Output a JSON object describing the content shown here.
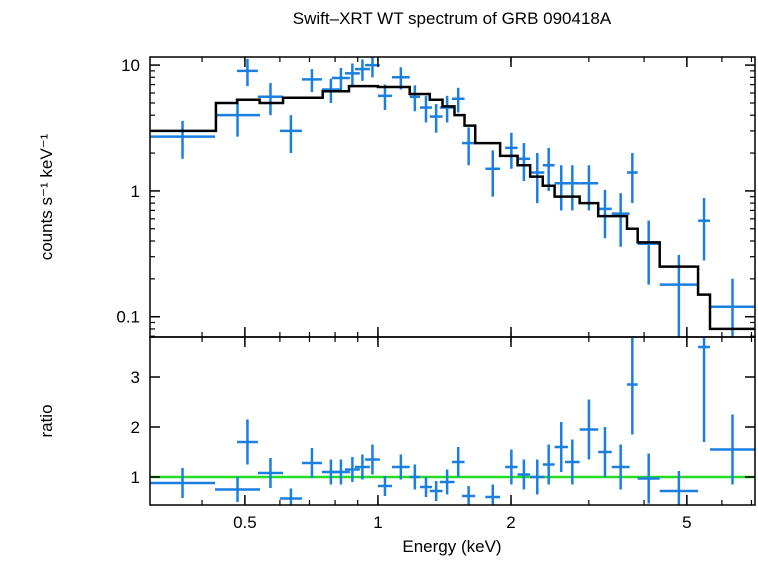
{
  "chart_data": [
    {
      "type": "errorbar",
      "title": "Swift–XRT WT spectrum of GRB 090418A",
      "ylabel": "counts s⁻¹ keV⁻¹",
      "log_x": true,
      "log_y": true,
      "xlim": [
        0.305,
        7.13
      ],
      "ylim": [
        0.069,
        11.6
      ],
      "yticks": [
        0.1,
        1,
        10
      ],
      "color": "#1a7fe0",
      "x_low": [
        0.305,
        0.428,
        0.48,
        0.535,
        0.6,
        0.673,
        0.747,
        0.787,
        0.842,
        0.887,
        0.935,
        1.0,
        1.076,
        1.18,
        1.245,
        1.31,
        1.38,
        1.47,
        1.55,
        1.75,
        1.94,
        2.07,
        2.21,
        2.36,
        2.51,
        2.65,
        2.86,
        3.15,
        3.38,
        3.66,
        3.87,
        4.34,
        5.3,
        5.64
      ],
      "x_high": [
        0.428,
        0.541,
        0.535,
        0.61,
        0.673,
        0.747,
        0.82,
        0.864,
        0.91,
        0.959,
        1.01,
        1.076,
        1.18,
        1.245,
        1.325,
        1.4,
        1.49,
        1.57,
        1.66,
        1.89,
        2.07,
        2.21,
        2.38,
        2.51,
        2.69,
        2.86,
        3.15,
        3.38,
        3.71,
        3.87,
        4.34,
        5.3,
        5.64,
        7.13
      ],
      "values": [
        2.7,
        4.0,
        9.0,
        5.6,
        3.0,
        7.7,
        6.4,
        7.9,
        8.6,
        9.3,
        10,
        5.7,
        8.0,
        5.6,
        4.6,
        3.9,
        4.6,
        5.4,
        2.4,
        1.5,
        2.2,
        1.8,
        1.4,
        1.6,
        1.15,
        1.15,
        1.15,
        0.72,
        0.66,
        1.4,
        0.38,
        0.18,
        0.58,
        0.12
      ],
      "errors": [
        0.9,
        1.3,
        2.2,
        1.6,
        1.0,
        1.6,
        1.4,
        1.6,
        1.7,
        1.8,
        2.0,
        1.3,
        1.6,
        1.3,
        1.1,
        1.0,
        1.1,
        1.2,
        0.8,
        0.6,
        0.7,
        0.6,
        0.6,
        0.6,
        0.45,
        0.45,
        0.45,
        0.3,
        0.3,
        0.6,
        0.2,
        0.13,
        0.3,
        0.08
      ],
      "model": {
        "color": "#000000",
        "bins": [
          0.305,
          0.43,
          0.48,
          0.54,
          0.61,
          0.75,
          0.86,
          1.0,
          1.18,
          1.31,
          1.4,
          1.49,
          1.57,
          1.66,
          1.89,
          2.07,
          2.21,
          2.36,
          2.51,
          2.86,
          3.15,
          3.66,
          3.87,
          4.34,
          5.3,
          5.64,
          7.13
        ],
        "values": [
          3.0,
          5.0,
          5.3,
          5.0,
          5.5,
          6.2,
          6.8,
          6.7,
          5.9,
          5.3,
          4.7,
          4.0,
          3.3,
          2.4,
          1.9,
          1.6,
          1.3,
          1.1,
          0.9,
          0.8,
          0.63,
          0.5,
          0.39,
          0.25,
          0.15,
          0.08
        ]
      }
    },
    {
      "type": "errorbar",
      "xlabel": "Energy (keV)",
      "ylabel": "ratio",
      "log_x": true,
      "log_y": false,
      "xlim": [
        0.305,
        7.13
      ],
      "ylim": [
        0.44,
        3.8
      ],
      "xticks": [
        0.5,
        1,
        2,
        5
      ],
      "yticks": [
        1,
        2,
        3
      ],
      "color": "#1a7fe0",
      "x_low": [
        0.305,
        0.428,
        0.48,
        0.535,
        0.6,
        0.673,
        0.747,
        0.787,
        0.842,
        0.887,
        0.935,
        1.0,
        1.076,
        1.18,
        1.245,
        1.31,
        1.38,
        1.47,
        1.55,
        1.75,
        1.94,
        2.07,
        2.21,
        2.36,
        2.51,
        2.65,
        2.86,
        3.15,
        3.38,
        3.66,
        3.87,
        4.34,
        5.3,
        5.64
      ],
      "x_high": [
        0.428,
        0.541,
        0.535,
        0.61,
        0.673,
        0.747,
        0.82,
        0.864,
        0.91,
        0.959,
        1.01,
        1.076,
        1.18,
        1.245,
        1.325,
        1.4,
        1.49,
        1.57,
        1.66,
        1.89,
        2.07,
        2.21,
        2.38,
        2.51,
        2.69,
        2.86,
        3.15,
        3.38,
        3.71,
        3.87,
        4.34,
        5.3,
        5.64,
        7.13
      ],
      "values": [
        0.88,
        0.75,
        1.7,
        1.08,
        0.57,
        1.28,
        1.1,
        1.1,
        1.15,
        1.2,
        1.35,
        0.82,
        1.2,
        1.0,
        0.8,
        0.72,
        0.9,
        1.3,
        0.62,
        0.6,
        1.2,
        1.05,
        1.0,
        1.25,
        1.6,
        1.3,
        1.95,
        1.5,
        1.2,
        2.85,
        0.97,
        0.72,
        3.6,
        1.55
      ],
      "errors": [
        0.3,
        0.25,
        0.45,
        0.3,
        0.2,
        0.3,
        0.25,
        0.25,
        0.25,
        0.25,
        0.3,
        0.2,
        0.25,
        0.25,
        0.2,
        0.2,
        0.25,
        0.3,
        0.2,
        0.25,
        0.35,
        0.3,
        0.35,
        0.4,
        0.5,
        0.45,
        0.6,
        0.5,
        0.45,
        1.0,
        0.5,
        0.4,
        1.9,
        0.7
      ],
      "reference": {
        "value": 1,
        "color": "#22dd22"
      }
    }
  ]
}
